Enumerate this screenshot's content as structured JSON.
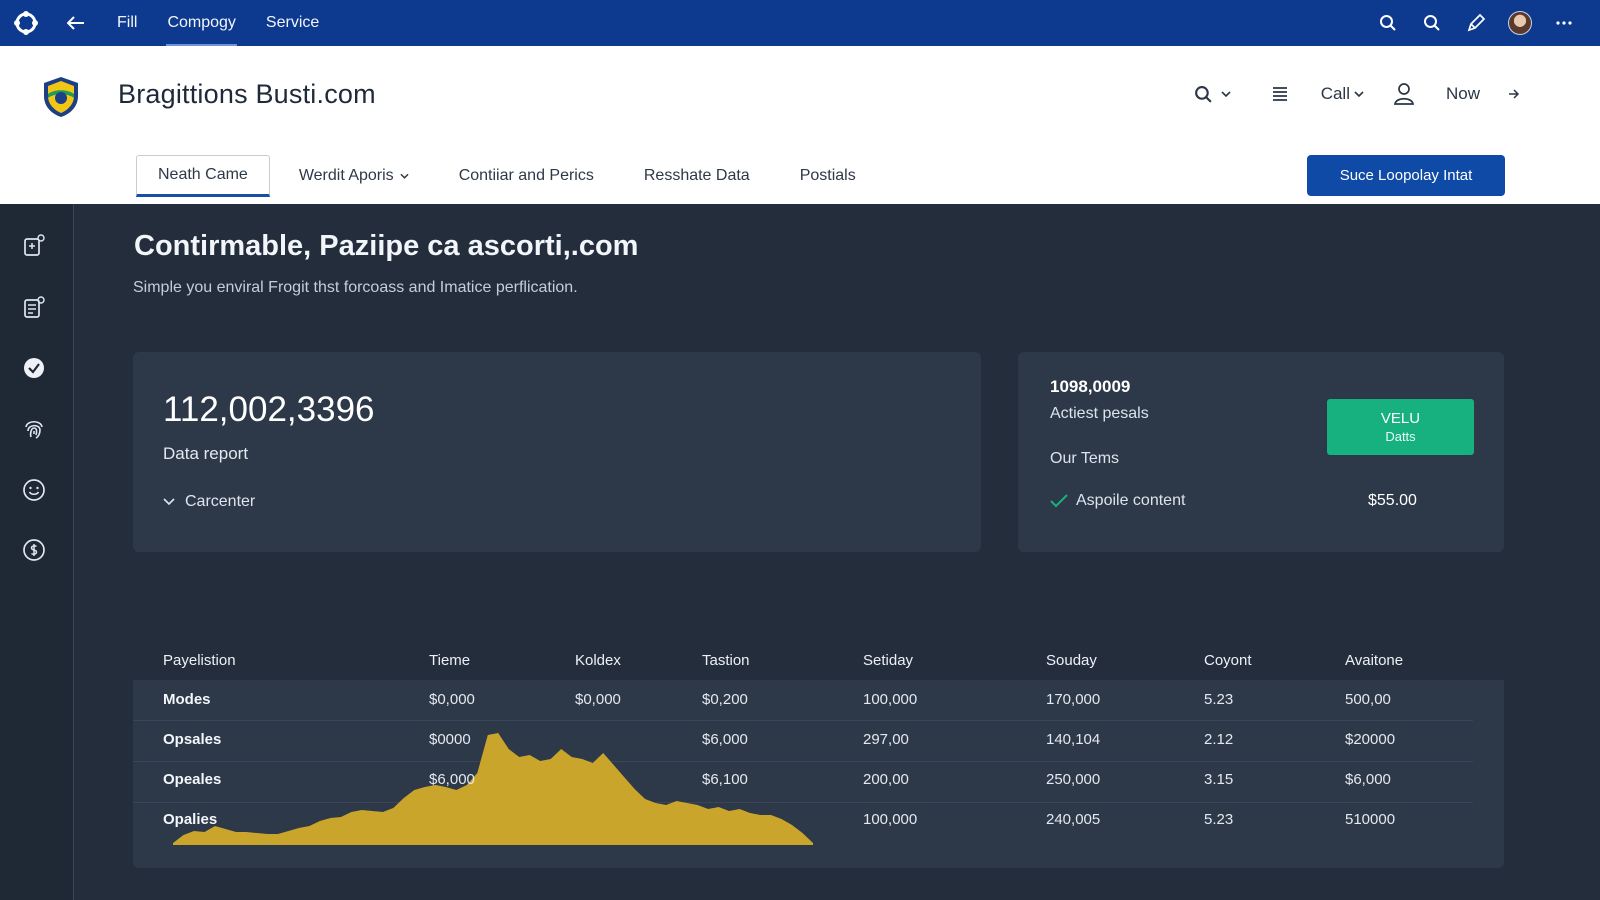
{
  "topbar": {
    "nav": [
      "Fill",
      "Compogy",
      "Service"
    ],
    "active_index": 1,
    "icons": [
      "app-logo-icon",
      "back-arrow-icon",
      "search-icon",
      "search-icon",
      "pen-icon",
      "avatar",
      "more-icon"
    ]
  },
  "header": {
    "brand_title": "Bragittions Busti.com",
    "actions": {
      "call_label": "Call",
      "now_label": "Now"
    },
    "tabs": [
      {
        "label": "Neath Came",
        "active": true
      },
      {
        "label": "Werdit Aporis",
        "dropdown": true
      },
      {
        "label": "Contiiar and Perics"
      },
      {
        "label": "Resshate Data"
      },
      {
        "label": "Postials"
      }
    ],
    "primary_button": "Suce Loopolay Intat"
  },
  "sidebar": {
    "icons": [
      "document-add-icon",
      "document-list-icon",
      "check-circle-icon",
      "fingerprint-icon",
      "smile-icon",
      "dollar-icon"
    ]
  },
  "main": {
    "title": "Contirmable, Paziipe ca ascorti,.com",
    "subtitle": "Simple you enviral Frogit thst forcoass and Imatice perflication.",
    "card1": {
      "value": "112,002,3396",
      "label": "Data report",
      "expander": "Carcenter"
    },
    "card2": {
      "value": "1098,0009",
      "label": "Actiest pesals",
      "label2": "Our Tems",
      "check_item": "Aspoile content",
      "price": "$55.00",
      "badge_line1": "VELU",
      "badge_line2": "Datts",
      "colors": {
        "badge": "#17b07f",
        "check": "#17b07f"
      }
    }
  },
  "table": {
    "headers": [
      "Payelistion",
      "Tieme",
      "Koldex",
      "Tastion",
      "Setiday",
      "Souday",
      "Coyont",
      "Avaitone"
    ],
    "rows": [
      [
        "Modes",
        "$0,000",
        "$0,000",
        "$0,200",
        "100,000",
        "170,000",
        "5.23",
        "500,00"
      ],
      [
        "Opsales",
        "$0000",
        "",
        "$6,000",
        "297,00",
        "140,104",
        "2.12",
        "$20000"
      ],
      [
        "Opeales",
        "$6,000",
        "",
        "$6,100",
        "200,00",
        "250,000",
        "3.15",
        "$6,000"
      ],
      [
        "Opalies",
        "",
        "",
        "",
        "100,000",
        "240,005",
        "5.23",
        "510000"
      ]
    ],
    "sparkline": {
      "color": "#c9a52b",
      "values": [
        2,
        10,
        14,
        13,
        19,
        16,
        13,
        13,
        12,
        11,
        11,
        14,
        17,
        19,
        24,
        27,
        28,
        33,
        35,
        34,
        33,
        37,
        47,
        55,
        58,
        60,
        58,
        55,
        60,
        72,
        110,
        112,
        96,
        88,
        90,
        84,
        86,
        96,
        88,
        86,
        82,
        92,
        80,
        68,
        56,
        46,
        42,
        40,
        44,
        42,
        40,
        36,
        38,
        34,
        36,
        32,
        30,
        30,
        26,
        20,
        12,
        2
      ]
    }
  }
}
